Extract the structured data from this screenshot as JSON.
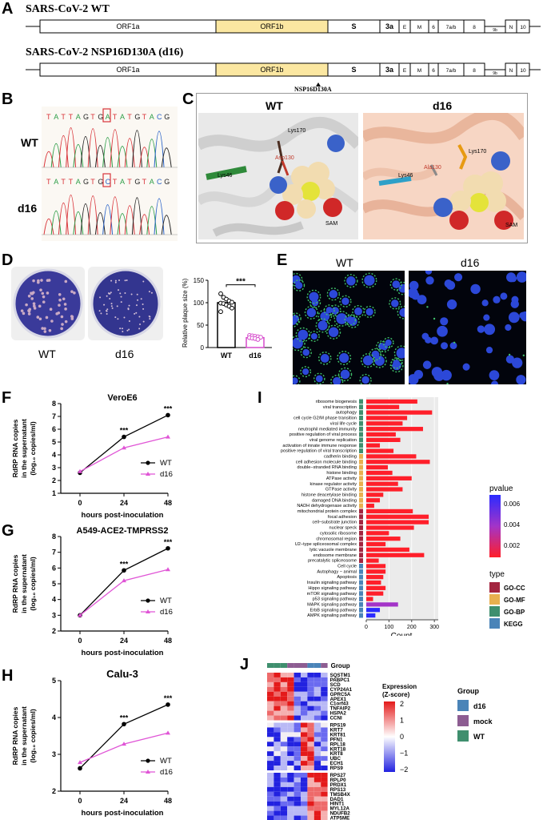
{
  "panels": {
    "A": "A",
    "B": "B",
    "C": "C",
    "D": "D",
    "E": "E",
    "F": "F",
    "G": "G",
    "H": "H",
    "I": "I",
    "J": "J"
  },
  "genome": {
    "wt_title": "SARS-CoV-2 WT",
    "mut_title": "SARS-CoV-2 NSP16D130A (d16)",
    "segments": [
      "ORF1a",
      "ORF1b",
      "S",
      "3a",
      "E",
      "M",
      "6",
      "7a/b",
      "8",
      "9b",
      "N",
      "10"
    ],
    "mutation_label": "NSP16D130A",
    "colors": {
      "orf1b": "#fbe7a1"
    }
  },
  "sanger": {
    "wt_label": "WT",
    "d16_label": "d16",
    "wt_seq": [
      "T",
      "A",
      "T",
      "T",
      "A",
      "G",
      "T",
      "G",
      "A",
      "T",
      "A",
      "T",
      "G",
      "T",
      "A",
      "C",
      "G"
    ],
    "d16_seq": [
      "T",
      "A",
      "T",
      "T",
      "A",
      "G",
      "T",
      "G",
      "C",
      "T",
      "A",
      "T",
      "G",
      "T",
      "A",
      "C",
      "G"
    ]
  },
  "structure": {
    "wt_title": "WT",
    "d16_title": "d16",
    "wt_labels": {
      "lys170": "Lys170",
      "asp130": "Asp130",
      "lys46": "Lys46",
      "sam": "SAM"
    },
    "d16_labels": {
      "lys170": "Lys170",
      "ala130": "Ala130",
      "lys46": "Lys46",
      "sam": "SAM"
    }
  },
  "plaque": {
    "wt_label": "WT",
    "d16_label": "d16",
    "chart_data": {
      "type": "bar",
      "categories": [
        "WT",
        "d16"
      ],
      "values": [
        100,
        22
      ],
      "ylabel": "Relative plaque size (%)",
      "ylim": [
        0,
        150
      ],
      "yticks": [
        "0",
        "50",
        "100",
        "150"
      ],
      "significance": "***",
      "wt_points": [
        120,
        112,
        108,
        104,
        101,
        99,
        98,
        95,
        92,
        88,
        80
      ],
      "d16_points": [
        27,
        26,
        25,
        24,
        23,
        22,
        21,
        20,
        18
      ]
    }
  },
  "ifa": {
    "wt_label": "WT",
    "d16_label": "d16"
  },
  "growth": [
    {
      "title": "VeroE6",
      "ylabel_line1": "RdRP RNA copies",
      "ylabel_line2": "in the supernatant",
      "ylabel_line3": "(log₁₀ copies/ml)",
      "xlabel": "hours post-inoculation",
      "chart_data": {
        "type": "line",
        "x": [
          0,
          24,
          48
        ],
        "ylim": [
          1,
          8
        ],
        "yticks": [
          "1",
          "2",
          "3",
          "4",
          "5",
          "6",
          "7",
          "8"
        ],
        "xticks": [
          "0",
          "24",
          "48"
        ],
        "series": [
          {
            "name": "WT",
            "values": [
              2.6,
              5.4,
              7.1
            ]
          },
          {
            "name": "d16",
            "values": [
              2.7,
              4.55,
              5.4
            ]
          }
        ],
        "significance": [
          "***",
          "***"
        ]
      }
    },
    {
      "title": "A549-ACE2-TMPRSS2",
      "ylabel_line1": "RdRP RNA copies",
      "ylabel_line2": "in the supernatant",
      "ylabel_line3": "(log₁₀ copies/ml)",
      "xlabel": "hours post-inoculation",
      "chart_data": {
        "type": "line",
        "x": [
          0,
          24,
          48
        ],
        "ylim": [
          2,
          8
        ],
        "yticks": [
          "2",
          "3",
          "4",
          "5",
          "6",
          "7",
          "8"
        ],
        "xticks": [
          "0",
          "24",
          "48"
        ],
        "series": [
          {
            "name": "WT",
            "values": [
              3.0,
              5.85,
              7.25
            ]
          },
          {
            "name": "d16",
            "values": [
              3.0,
              5.2,
              5.9
            ]
          }
        ],
        "significance": [
          "***",
          "***"
        ]
      }
    },
    {
      "title": "Calu-3",
      "ylabel_line1": "RdRP RNA copies",
      "ylabel_line2": "in the supernatant",
      "ylabel_line3": "(log₁₀ copies/ml)",
      "xlabel": "hours post-inoculation",
      "chart_data": {
        "type": "line",
        "x": [
          0,
          24,
          48
        ],
        "ylim": [
          2,
          5
        ],
        "yticks": [
          "2",
          "3",
          "4",
          "5"
        ],
        "xticks": [
          "0",
          "24",
          "48"
        ],
        "series": [
          {
            "name": "WT",
            "values": [
              2.62,
              3.82,
              4.35
            ]
          },
          {
            "name": "d16",
            "values": [
              2.78,
              3.28,
              3.58
            ]
          }
        ],
        "significance": [
          "***",
          "***"
        ]
      }
    }
  ],
  "enrichment": {
    "chart_data": {
      "type": "bar",
      "orientation": "horizontal",
      "xlabel": "Count",
      "xticks": [
        "0",
        "100",
        "200",
        "300"
      ],
      "xlim": [
        0,
        310
      ],
      "categories": [
        "ribosome biogenesis",
        "viral transcription",
        "autophagy",
        "cell cycle G2/M phase transition",
        "viral life cycle",
        "neutrophil mediated immunity",
        "positive regulation of viral process",
        "viral genome replication",
        "activation of innate immune response",
        "positive regulation of viral transcription",
        "cadherin binding",
        "cell adhesion molecule binding",
        "double−stranded RNA binding",
        "histone binding",
        "ATPase activity",
        "kinase regulator activity",
        "GTPase activity",
        "histone deacetylase binding",
        "damaged DNA binding",
        "NADH dehydrogenase activity",
        "mitochondrial protein complex",
        "focal adhesion",
        "cell−substrate junction",
        "nuclear speck",
        "cytosolic ribosome",
        "chromosomal region",
        "U2−type spliceosomal complex",
        "lytic vacuole membrane",
        "endosome membrane",
        "precatalytic spliceosome",
        "Cell cycle",
        "Autophagy − animal",
        "Apoptosis",
        "Insulin signaling pathway",
        "Hippo signaling pathway",
        "mTOR signaling pathway",
        "p53 signaling pathway",
        "MAPK signaling pathway",
        "ErbB signaling pathway",
        "AMPK signaling pathway"
      ],
      "values": [
        225,
        145,
        290,
        180,
        160,
        250,
        130,
        150,
        60,
        120,
        220,
        280,
        95,
        115,
        200,
        140,
        160,
        75,
        60,
        35,
        205,
        275,
        275,
        210,
        100,
        150,
        85,
        190,
        255,
        55,
        85,
        85,
        75,
        65,
        85,
        75,
        30,
        140,
        60,
        40
      ],
      "types": [
        "GO-BP",
        "GO-BP",
        "GO-BP",
        "GO-BP",
        "GO-BP",
        "GO-BP",
        "GO-BP",
        "GO-BP",
        "GO-BP",
        "GO-BP",
        "GO-MF",
        "GO-MF",
        "GO-MF",
        "GO-MF",
        "GO-MF",
        "GO-MF",
        "GO-MF",
        "GO-MF",
        "GO-MF",
        "GO-MF",
        "GO-CC",
        "GO-CC",
        "GO-CC",
        "GO-CC",
        "GO-CC",
        "GO-CC",
        "GO-CC",
        "GO-CC",
        "GO-CC",
        "GO-CC",
        "KEGG",
        "KEGG",
        "KEGG",
        "KEGG",
        "KEGG",
        "KEGG",
        "KEGG",
        "KEGG",
        "KEGG",
        "KEGG"
      ],
      "pvalue_shade": [
        0,
        0,
        0,
        0,
        0,
        0,
        0,
        0,
        0,
        0,
        0,
        0,
        0,
        0,
        0,
        0,
        0,
        0,
        0,
        0,
        0,
        0,
        0,
        0,
        0,
        0,
        0,
        0,
        0,
        0,
        0,
        0,
        0,
        0,
        0,
        0,
        0,
        0.85,
        1,
        1
      ],
      "legend_pvalue_title": "pvalue",
      "legend_pvalue_ticks": [
        "0.006",
        "0.004",
        "0.002"
      ],
      "legend_type_title": "type",
      "legend_type_entries": [
        {
          "name": "GO-CC",
          "color": "#a3253f"
        },
        {
          "name": "GO-MF",
          "color": "#e8b04f"
        },
        {
          "name": "GO-BP",
          "color": "#3f8f6e"
        },
        {
          "name": "KEGG",
          "color": "#4a84b8"
        }
      ]
    }
  },
  "heatmap": {
    "chart_data": {
      "type": "heatmap",
      "group_label": "Group",
      "column_groups": [
        "WT",
        "WT",
        "WT",
        "mock",
        "mock",
        "mock",
        "d16",
        "d16",
        "mock"
      ],
      "rows": [
        "SQSTM1",
        "PABPC1",
        "SCD",
        "CYP24A1",
        "GPRC5A",
        "APEX1",
        "C1orf43",
        "TNFAIP2",
        "HSPA2",
        "CCNI",
        "RPS19",
        "KRT7",
        "KRT81",
        "PFN1",
        "RPL18",
        "KRT18",
        "KRT8",
        "UBC",
        "ECH1",
        "RPS9",
        "RPS27",
        "RPLP0",
        "PRDX1",
        "RPS13",
        "TMSB4X",
        "DAD1",
        "HINT1",
        "MYL12A",
        "NDUFB2",
        "ATP5ME"
      ],
      "legend_title_line1": "Expression",
      "legend_title_line2": "(Z-score)",
      "legend_ticks": [
        "2",
        "1",
        "0",
        "−1",
        "−2"
      ],
      "group_legend_title": "Group",
      "group_legend": [
        {
          "name": "d16",
          "color": "#4a84b8"
        },
        {
          "name": "mock",
          "color": "#8d5d92"
        },
        {
          "name": "WT",
          "color": "#3f8f6e"
        }
      ]
    }
  }
}
